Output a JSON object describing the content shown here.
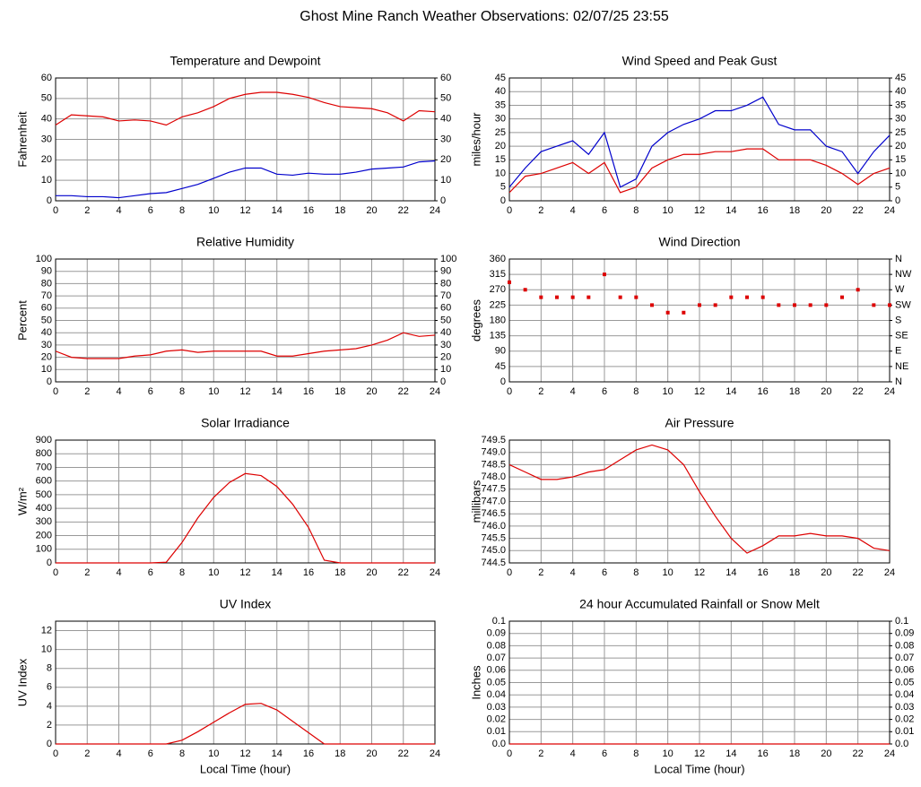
{
  "title": "Ghost Mine Ranch Weather Observations: 02/07/25 23:55",
  "chart_data": [
    {
      "type": "line",
      "title": "Temperature and Dewpoint",
      "y_label": "Fahrenheit",
      "x": [
        0,
        1,
        2,
        3,
        4,
        5,
        6,
        7,
        8,
        9,
        10,
        11,
        12,
        13,
        14,
        15,
        16,
        17,
        18,
        19,
        20,
        21,
        22,
        23,
        24
      ],
      "series": [
        {
          "color": "#dd0000",
          "values": [
            37,
            42,
            41.5,
            41,
            39,
            39.5,
            39,
            37,
            41,
            43,
            46,
            50,
            52,
            53,
            53,
            52,
            50.5,
            48,
            46,
            45.5,
            45,
            43,
            39,
            44,
            43.5
          ]
        },
        {
          "color": "#0000cc",
          "values": [
            2.5,
            2.5,
            2,
            2,
            1.5,
            2.5,
            3.5,
            4,
            6,
            8,
            11,
            14,
            16,
            16,
            13,
            12.5,
            13.5,
            13,
            13,
            14,
            15.5,
            16,
            16.5,
            19,
            19.5
          ]
        }
      ],
      "xlim": [
        0,
        24
      ],
      "xticks": [
        0,
        2,
        4,
        6,
        8,
        10,
        12,
        14,
        16,
        18,
        20,
        22,
        24
      ],
      "ylim": [
        0,
        60
      ],
      "yticks": [
        0,
        10,
        20,
        30,
        40,
        50,
        60
      ],
      "y2lim": [
        0,
        60
      ],
      "y2ticks": [
        0,
        10,
        20,
        30,
        40,
        50,
        60
      ],
      "grid": true
    },
    {
      "type": "line",
      "title": "Wind Speed and Peak Gust",
      "y_label": "miles/hour",
      "x": [
        0,
        1,
        2,
        3,
        4,
        5,
        6,
        7,
        8,
        9,
        10,
        11,
        12,
        13,
        14,
        15,
        16,
        17,
        18,
        19,
        20,
        21,
        22,
        23,
        24
      ],
      "series": [
        {
          "color": "#0000cc",
          "values": [
            5,
            12,
            18,
            20,
            22,
            17,
            25,
            5,
            8,
            20,
            25,
            28,
            30,
            33,
            33,
            35,
            38,
            28,
            26,
            26,
            20,
            18,
            10,
            18,
            24
          ]
        },
        {
          "color": "#dd0000",
          "values": [
            3,
            9,
            10,
            12,
            14,
            10,
            14,
            3,
            5,
            12,
            15,
            17,
            17,
            18,
            18,
            19,
            19,
            15,
            15,
            15,
            13,
            10,
            6,
            10,
            12
          ]
        }
      ],
      "xlim": [
        0,
        24
      ],
      "xticks": [
        0,
        2,
        4,
        6,
        8,
        10,
        12,
        14,
        16,
        18,
        20,
        22,
        24
      ],
      "ylim": [
        0,
        45
      ],
      "yticks": [
        0,
        5,
        10,
        15,
        20,
        25,
        30,
        35,
        40,
        45
      ],
      "y2lim": [
        0,
        45
      ],
      "y2ticks": [
        0,
        5,
        10,
        15,
        20,
        25,
        30,
        35,
        40,
        45
      ],
      "grid": true
    },
    {
      "type": "line",
      "title": "Relative Humidity",
      "y_label": "Percent",
      "x": [
        0,
        1,
        2,
        3,
        4,
        5,
        6,
        7,
        8,
        9,
        10,
        11,
        12,
        13,
        14,
        15,
        16,
        17,
        18,
        19,
        20,
        21,
        22,
        23,
        24
      ],
      "series": [
        {
          "color": "#dd0000",
          "values": [
            25,
            20,
            19,
            19,
            19,
            21,
            22,
            25,
            26,
            24,
            25,
            25,
            25,
            25,
            21,
            21,
            23,
            25,
            26,
            27,
            30,
            34,
            40,
            37,
            38
          ]
        }
      ],
      "xlim": [
        0,
        24
      ],
      "xticks": [
        0,
        2,
        4,
        6,
        8,
        10,
        12,
        14,
        16,
        18,
        20,
        22,
        24
      ],
      "ylim": [
        0,
        100
      ],
      "yticks": [
        0,
        10,
        20,
        30,
        40,
        50,
        60,
        70,
        80,
        90,
        100
      ],
      "y2lim": [
        0,
        100
      ],
      "y2ticks": [
        0,
        10,
        20,
        30,
        40,
        50,
        60,
        70,
        80,
        90,
        100
      ],
      "grid": true
    },
    {
      "type": "scatter",
      "title": "Wind Direction",
      "y_label": "degrees",
      "x": [
        0,
        1,
        2,
        3,
        4,
        5,
        6,
        7,
        8,
        9,
        10,
        11,
        12,
        13,
        14,
        15,
        16,
        17,
        18,
        19,
        20,
        21,
        22,
        23,
        24
      ],
      "series": [
        {
          "color": "#dd0000",
          "values": [
            292,
            270,
            248,
            248,
            248,
            248,
            315,
            248,
            248,
            225,
            203,
            203,
            225,
            225,
            248,
            248,
            248,
            225,
            225,
            225,
            225,
            248,
            270,
            225,
            225
          ]
        }
      ],
      "xlim": [
        0,
        24
      ],
      "xticks": [
        0,
        2,
        4,
        6,
        8,
        10,
        12,
        14,
        16,
        18,
        20,
        22,
        24
      ],
      "ylim": [
        0,
        360
      ],
      "yticks": [
        0,
        45,
        90,
        135,
        180,
        225,
        270,
        315,
        360
      ],
      "y2lim": [
        0,
        360
      ],
      "y2ticks": [
        {
          "value": 0,
          "label": "N"
        },
        {
          "value": 45,
          "label": "NE"
        },
        {
          "value": 90,
          "label": "E"
        },
        {
          "value": 135,
          "label": "SE"
        },
        {
          "value": 180,
          "label": "S"
        },
        {
          "value": 225,
          "label": "SW"
        },
        {
          "value": 270,
          "label": "W"
        },
        {
          "value": 315,
          "label": "NW"
        },
        {
          "value": 360,
          "label": "N"
        }
      ],
      "grid": true
    },
    {
      "type": "line",
      "title": "Solar Irradiance",
      "y_label": "W/m²",
      "x": [
        0,
        1,
        2,
        3,
        4,
        5,
        6,
        7,
        8,
        9,
        10,
        11,
        12,
        13,
        14,
        15,
        16,
        17,
        18,
        19,
        20,
        21,
        22,
        23,
        24
      ],
      "series": [
        {
          "color": "#dd0000",
          "values": [
            0,
            0,
            0,
            0,
            0,
            0,
            0,
            5,
            150,
            330,
            480,
            590,
            655,
            640,
            560,
            430,
            260,
            20,
            0,
            0,
            0,
            0,
            0,
            0,
            0
          ]
        }
      ],
      "xlim": [
        0,
        24
      ],
      "xticks": [
        0,
        2,
        4,
        6,
        8,
        10,
        12,
        14,
        16,
        18,
        20,
        22,
        24
      ],
      "ylim": [
        0,
        900
      ],
      "yticks": [
        0,
        100,
        200,
        300,
        400,
        500,
        600,
        700,
        800,
        900
      ],
      "grid": true
    },
    {
      "type": "line",
      "title": "Air Pressure",
      "y_label": "millibars",
      "x": [
        0,
        1,
        2,
        3,
        4,
        5,
        6,
        7,
        8,
        9,
        10,
        11,
        12,
        13,
        14,
        15,
        16,
        17,
        18,
        19,
        20,
        21,
        22,
        23,
        24
      ],
      "series": [
        {
          "color": "#dd0000",
          "values": [
            748.5,
            748.2,
            747.9,
            747.9,
            748.0,
            748.2,
            748.3,
            748.7,
            749.1,
            749.3,
            749.1,
            748.5,
            747.4,
            746.4,
            745.5,
            744.9,
            745.2,
            745.6,
            745.6,
            745.7,
            745.6,
            745.6,
            745.5,
            745.1,
            745.0
          ]
        }
      ],
      "xlim": [
        0,
        24
      ],
      "xticks": [
        0,
        2,
        4,
        6,
        8,
        10,
        12,
        14,
        16,
        18,
        20,
        22,
        24
      ],
      "ylim": [
        744.5,
        749.5
      ],
      "yticks": [
        744.5,
        {
          "value": 745,
          "label": "745.0"
        },
        745.5,
        {
          "value": 746,
          "label": "746.0"
        },
        746.5,
        {
          "value": 747,
          "label": "747.0"
        },
        747.5,
        {
          "value": 748,
          "label": "748.0"
        },
        748.5,
        {
          "value": 749,
          "label": "749.0"
        },
        749.5
      ],
      "grid": true
    },
    {
      "type": "line",
      "title": "UV Index",
      "y_label": "UV Index",
      "x_label": "Local Time (hour)",
      "x": [
        0,
        1,
        2,
        3,
        4,
        5,
        6,
        7,
        8,
        9,
        10,
        11,
        12,
        13,
        14,
        15,
        16,
        17,
        18,
        19,
        20,
        21,
        22,
        23,
        24
      ],
      "series": [
        {
          "color": "#dd0000",
          "values": [
            0,
            0,
            0,
            0,
            0,
            0,
            0,
            0,
            0.4,
            1.3,
            2.3,
            3.3,
            4.2,
            4.3,
            3.6,
            2.4,
            1.2,
            0,
            0,
            0,
            0,
            0,
            0,
            0,
            0
          ]
        }
      ],
      "xlim": [
        0,
        24
      ],
      "xticks": [
        0,
        2,
        4,
        6,
        8,
        10,
        12,
        14,
        16,
        18,
        20,
        22,
        24
      ],
      "ylim": [
        0,
        13
      ],
      "yticks": [
        0,
        2,
        4,
        6,
        8,
        10,
        12
      ],
      "grid": true
    },
    {
      "type": "line",
      "title": "24 hour Accumulated Rainfall or Snow Melt",
      "y_label": "Inches",
      "x_label": "Local Time (hour)",
      "x": [
        0,
        1,
        2,
        3,
        4,
        5,
        6,
        7,
        8,
        9,
        10,
        11,
        12,
        13,
        14,
        15,
        16,
        17,
        18,
        19,
        20,
        21,
        22,
        23,
        24
      ],
      "series": [
        {
          "color": "#dd0000",
          "values": [
            0,
            0,
            0,
            0,
            0,
            0,
            0,
            0,
            0,
            0,
            0,
            0,
            0,
            0,
            0,
            0,
            0,
            0,
            0,
            0,
            0,
            0,
            0,
            0,
            0
          ]
        }
      ],
      "xlim": [
        0,
        24
      ],
      "xticks": [
        0,
        2,
        4,
        6,
        8,
        10,
        12,
        14,
        16,
        18,
        20,
        22,
        24
      ],
      "ylim": [
        0,
        0.1
      ],
      "yticks": [
        {
          "value": 0,
          "label": "0.0"
        },
        0.01,
        0.02,
        0.03,
        0.04,
        0.05,
        0.06,
        0.07,
        0.08,
        0.09,
        0.1
      ],
      "y2lim": [
        0,
        0.1
      ],
      "y2ticks": [
        {
          "value": 0,
          "label": "0.0"
        },
        0.01,
        0.02,
        0.03,
        0.04,
        0.05,
        0.06,
        0.07,
        0.08,
        0.09,
        0.1
      ],
      "grid": true
    }
  ]
}
